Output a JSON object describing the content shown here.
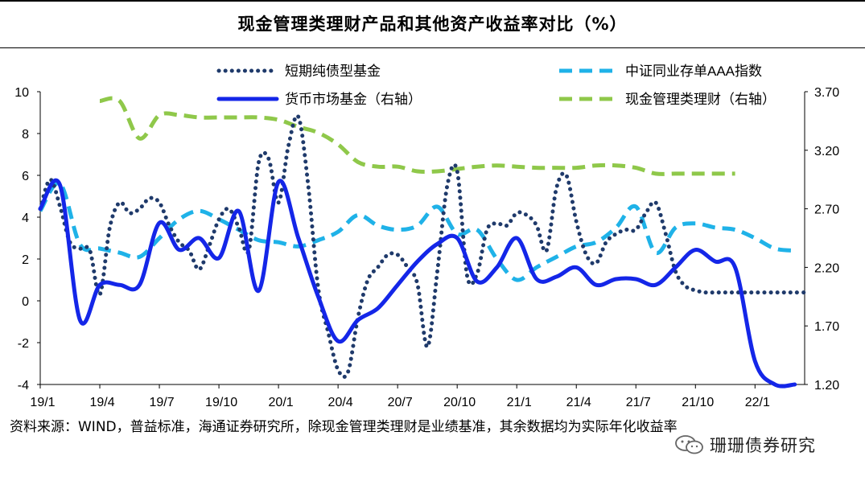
{
  "chart_data": {
    "type": "line",
    "title": "现金管理类理财产品和其他资产收益率对比（%）",
    "categories": [
      "19/1",
      "19/4",
      "19/7",
      "19/10",
      "20/1",
      "20/4",
      "20/7",
      "20/10",
      "21/1",
      "21/4",
      "21/7",
      "21/10",
      "22/1"
    ],
    "left_axis": {
      "ylim": [
        -4,
        10
      ],
      "ticks": [
        "10",
        "8",
        "6",
        "4",
        "2",
        "0",
        "-2",
        "-4"
      ]
    },
    "right_axis": {
      "ylim": [
        1.2,
        3.7
      ],
      "ticks": [
        "3.70",
        "3.20",
        "2.70",
        "2.20",
        "1.70",
        "1.20"
      ]
    },
    "series": [
      {
        "name": "短期纯债型基金",
        "axis": "left",
        "style": "dotted",
        "color": "#1f3a6b",
        "x": [
          0,
          0.5,
          1,
          1.5,
          2,
          2.5,
          3,
          3.5,
          4,
          4.5,
          5,
          5.5,
          6,
          6.5,
          7,
          7.5,
          8,
          8.5,
          9,
          9.5,
          10,
          10.5,
          11,
          11.5,
          12,
          12.5,
          13,
          13.5,
          14,
          14.5,
          15,
          15.5,
          16,
          16.5,
          17,
          17.5,
          18,
          18.5,
          19,
          19.5,
          20,
          20.5,
          21,
          21.5,
          22,
          22.5,
          23,
          23.5,
          24,
          24.5,
          25,
          25.5,
          26,
          26.5,
          27,
          27.5,
          28,
          28.5,
          29,
          29.5,
          30,
          30.5,
          31,
          31.5,
          32,
          32.5,
          33,
          33.5,
          34,
          34.5,
          35,
          35.5,
          36,
          36.5,
          37,
          37.5,
          38,
          38.5
        ],
        "values": [
          4.4,
          5.8,
          4.5,
          2.8,
          2.5,
          2.4,
          0.3,
          3.5,
          4.7,
          4.2,
          4.4,
          4.9,
          4.7,
          3.6,
          2.8,
          2.4,
          1.5,
          2.6,
          3.9,
          4.4,
          3.5,
          2.4,
          6.6,
          6.8,
          4.7,
          7.4,
          8.8,
          5.5,
          0.6,
          -1.5,
          -3.3,
          -3.4,
          -0.8,
          1.0,
          1.6,
          2.2,
          2.2,
          1.6,
          0.8,
          -2.2,
          1.4,
          5.5,
          6.2,
          1.2,
          1.3,
          3.4,
          3.7,
          3.6,
          4.2,
          4.1,
          3.6,
          2.4,
          5.4,
          6.0,
          3.8,
          2.2,
          1.8,
          2.8,
          3.2,
          3.4,
          3.4,
          4.2,
          4.7,
          3.2,
          1.4,
          0.7,
          0.5,
          0.4,
          0.4,
          0.4,
          0.4,
          0.4,
          0.4,
          0.4,
          0.4,
          0.4,
          0.4,
          0.4
        ]
      },
      {
        "name": "中证同业存单AAA指数",
        "axis": "left",
        "style": "dashed",
        "color": "#1fb2e8",
        "x": [
          0,
          1,
          2,
          3,
          4,
          5,
          6,
          7,
          8,
          9,
          10,
          11,
          12,
          13,
          14,
          15,
          16,
          17,
          18,
          19,
          20,
          21,
          22,
          23,
          24,
          25,
          26,
          27,
          28,
          29,
          30,
          31,
          32,
          33,
          34,
          35,
          36,
          37,
          38
        ],
        "values": [
          4.3,
          5.6,
          2.7,
          2.5,
          2.3,
          2.1,
          3.0,
          3.9,
          4.3,
          3.9,
          3.4,
          2.9,
          2.8,
          2.6,
          2.9,
          3.3,
          4.1,
          3.6,
          3.4,
          3.6,
          4.5,
          3.2,
          3.4,
          2.0,
          1.0,
          1.6,
          2.1,
          2.6,
          2.8,
          3.5,
          4.5,
          2.3,
          3.5,
          3.7,
          3.5,
          3.4,
          3.0,
          2.5,
          2.4
        ]
      },
      {
        "name": "货币市场基金（右轴）",
        "axis": "right",
        "style": "solid",
        "color": "#1426e8",
        "x": [
          0,
          1,
          2,
          3,
          4,
          5,
          6,
          7,
          8,
          9,
          10,
          11,
          12,
          13,
          14,
          15,
          16,
          17,
          18,
          19,
          20,
          21,
          22,
          23,
          24,
          25,
          26,
          27,
          28,
          29,
          30,
          31,
          32,
          33,
          34,
          35,
          36,
          37,
          38
        ],
        "values": [
          2.7,
          2.9,
          1.75,
          2.05,
          2.05,
          2.05,
          2.58,
          2.35,
          2.45,
          2.28,
          2.68,
          2.0,
          2.93,
          2.45,
          1.95,
          1.57,
          1.75,
          1.85,
          2.05,
          2.25,
          2.4,
          2.45,
          2.08,
          2.2,
          2.45,
          2.1,
          2.12,
          2.2,
          2.05,
          2.1,
          2.1,
          2.05,
          2.2,
          2.35,
          2.25,
          2.2,
          1.4,
          1.2,
          1.2
        ]
      },
      {
        "name": "现金管理类理财（右轴）",
        "axis": "right",
        "style": "dashed",
        "color": "#8fc84a",
        "x": [
          3,
          4,
          5,
          6,
          7,
          8,
          9,
          10,
          11,
          12,
          13,
          14,
          15,
          16,
          17,
          18,
          19,
          20,
          21,
          22,
          23,
          24,
          25,
          26,
          27,
          28,
          29,
          30,
          31,
          32,
          33,
          34,
          35
        ],
        "values": [
          3.62,
          3.62,
          3.3,
          3.5,
          3.5,
          3.48,
          3.48,
          3.48,
          3.48,
          3.46,
          3.4,
          3.35,
          3.25,
          3.1,
          3.06,
          3.06,
          3.02,
          3.02,
          3.04,
          3.06,
          3.07,
          3.06,
          3.05,
          3.05,
          3.05,
          3.07,
          3.07,
          3.05,
          3.0,
          3.0,
          3.0,
          3.0,
          3.0
        ]
      }
    ]
  },
  "source_note": "资料来源：WIND，普益标准，海通证券研究所，除现金管理类理财是业绩基准，其余数据均为实际年化收益率",
  "watermark": "珊珊债券研究"
}
